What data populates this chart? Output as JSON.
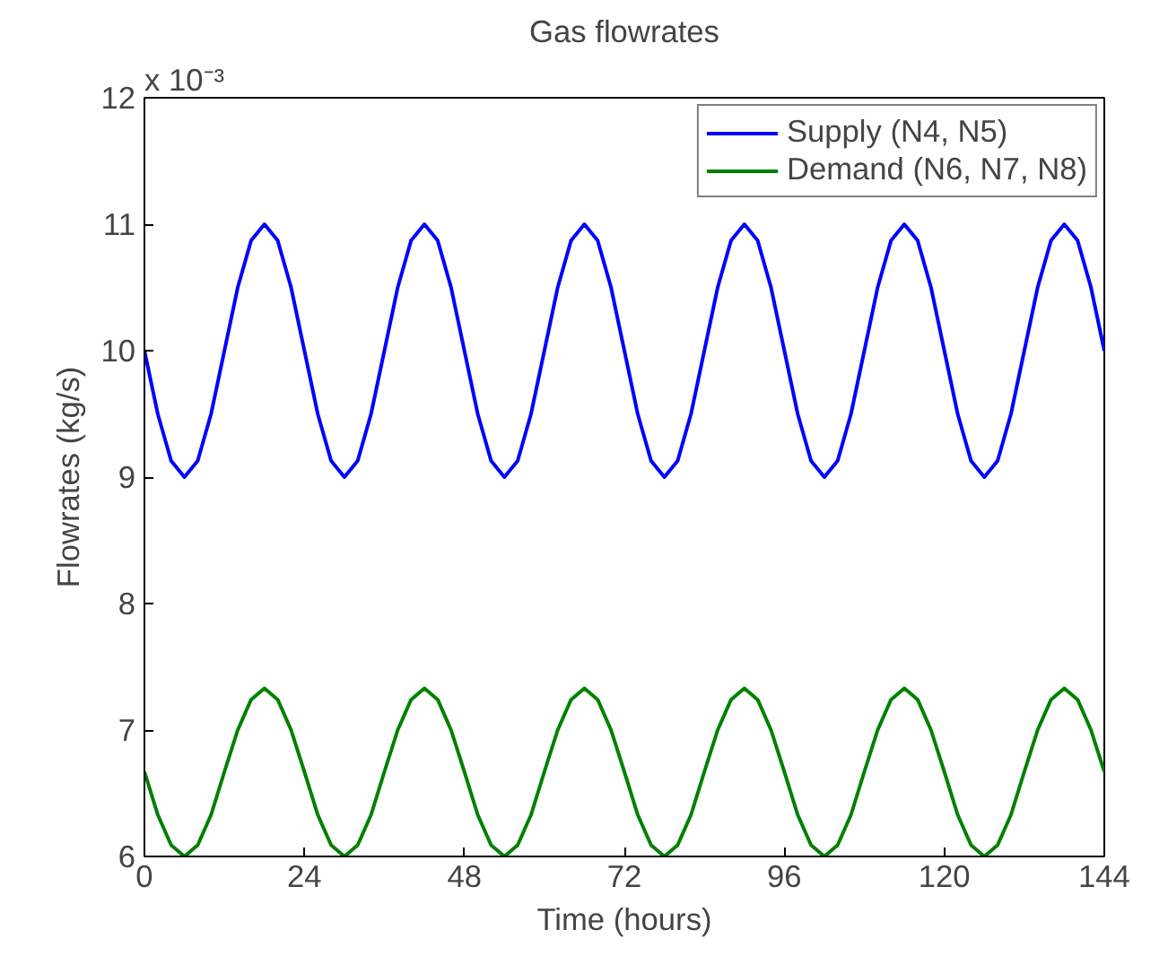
{
  "chart_data": {
    "type": "line",
    "title": "Gas flowrates",
    "xlabel": "Time (hours)",
    "ylabel": "Flowrates (kg/s)",
    "x": [
      0,
      2,
      4,
      6,
      8,
      10,
      12,
      14,
      16,
      18,
      20,
      22,
      24,
      26,
      28,
      30,
      32,
      34,
      36,
      38,
      40,
      42,
      44,
      46,
      48,
      50,
      52,
      54,
      56,
      58,
      60,
      62,
      64,
      66,
      68,
      70,
      72,
      74,
      76,
      78,
      80,
      82,
      84,
      86,
      88,
      90,
      92,
      94,
      96,
      98,
      100,
      102,
      104,
      106,
      108,
      110,
      112,
      114,
      116,
      118,
      120,
      122,
      124,
      126,
      128,
      130,
      132,
      134,
      136,
      138,
      140,
      142,
      144
    ],
    "series": [
      {
        "name": "Supply (N4, N5)",
        "color": "#0000ff",
        "values": [
          10,
          9.5,
          9.13,
          9,
          9.13,
          9.5,
          10,
          10.5,
          10.87,
          11,
          10.87,
          10.5,
          10,
          9.5,
          9.13,
          9,
          9.13,
          9.5,
          10,
          10.5,
          10.87,
          11,
          10.87,
          10.5,
          10,
          9.5,
          9.13,
          9,
          9.13,
          9.5,
          10,
          10.5,
          10.87,
          11,
          10.87,
          10.5,
          10,
          9.5,
          9.13,
          9,
          9.13,
          9.5,
          10,
          10.5,
          10.87,
          11,
          10.87,
          10.5,
          10,
          9.5,
          9.13,
          9,
          9.13,
          9.5,
          10,
          10.5,
          10.87,
          11,
          10.87,
          10.5,
          10,
          9.5,
          9.13,
          9,
          9.13,
          9.5,
          10,
          10.5,
          10.87,
          11,
          10.87,
          10.5,
          10
        ]
      },
      {
        "name": "Demand (N6, N7, N8)",
        "color": "#008000",
        "values": [
          6.67,
          6.33,
          6.09,
          6,
          6.09,
          6.33,
          6.67,
          7,
          7.24,
          7.33,
          7.24,
          7,
          6.67,
          6.33,
          6.09,
          6,
          6.09,
          6.33,
          6.67,
          7,
          7.24,
          7.33,
          7.24,
          7,
          6.67,
          6.33,
          6.09,
          6,
          6.09,
          6.33,
          6.67,
          7,
          7.24,
          7.33,
          7.24,
          7,
          6.67,
          6.33,
          6.09,
          6,
          6.09,
          6.33,
          6.67,
          7,
          7.24,
          7.33,
          7.24,
          7,
          6.67,
          6.33,
          6.09,
          6,
          6.09,
          6.33,
          6.67,
          7,
          7.24,
          7.33,
          7.24,
          7,
          6.67,
          6.33,
          6.09,
          6,
          6.09,
          6.33,
          6.67,
          7,
          7.24,
          7.33,
          7.24,
          7,
          6.67
        ]
      }
    ],
    "xlim": [
      0,
      144
    ],
    "xticks": [
      0,
      24,
      48,
      72,
      96,
      120,
      144
    ],
    "ylim": [
      6,
      12
    ],
    "yticks": [
      6,
      7,
      8,
      9,
      10,
      11,
      12
    ],
    "annotations": [
      "x 10⁻³"
    ],
    "legend": "top right",
    "grid": false,
    "marker": "none",
    "line_style": "solid"
  }
}
